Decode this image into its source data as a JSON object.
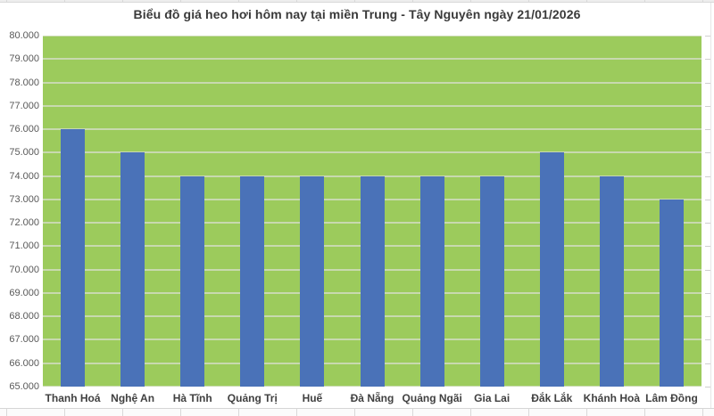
{
  "chart_data": {
    "type": "bar",
    "title": "Biểu đồ giá heo hơi hôm nay tại miền Trung - Tây Nguyên ngày 21/01/2026",
    "categories": [
      "Thanh Hoá",
      "Nghệ An",
      "Hà Tĩnh",
      "Quảng Trị",
      "Huế",
      "Đà Nẵng",
      "Quảng Ngãi",
      "Gia Lai",
      "Đắk Lắk",
      "Khánh Hoà",
      "Lâm Đồng"
    ],
    "values": [
      76000,
      75000,
      74000,
      74000,
      74000,
      74000,
      74000,
      74000,
      75000,
      74000,
      73000
    ],
    "xlabel": "",
    "ylabel": "",
    "ylim": [
      65000,
      80000
    ],
    "ytick_step": 1000,
    "ytick_labels": [
      "80.000",
      "79.000",
      "78.000",
      "77.000",
      "76.000",
      "75.000",
      "74.000",
      "73.000",
      "72.000",
      "71.000",
      "70.000",
      "69.000",
      "68.000",
      "67.000",
      "66.000",
      "65.000"
    ],
    "grid": true,
    "legend": "none",
    "colors": {
      "bar": "#4A72B8",
      "plot_background": "#9CCB5C",
      "gridline": "#C8D9AF",
      "title_text": "#3A3A3A",
      "ytick_text": "#595959",
      "xtick_text": "#404040",
      "chart_background": "#FFFFFF"
    }
  }
}
